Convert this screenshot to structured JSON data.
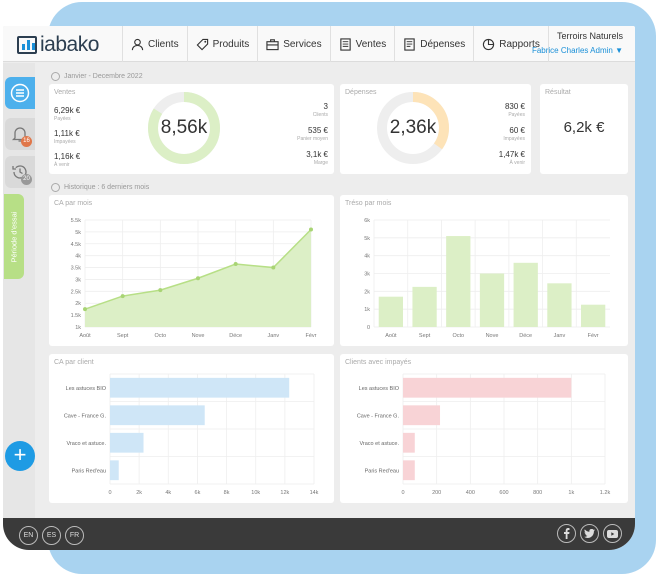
{
  "header": {
    "logo_text": "iabako",
    "nav": [
      {
        "label": "Clients",
        "icon": "user-icon"
      },
      {
        "label": "Produits",
        "icon": "tag-icon"
      },
      {
        "label": "Services",
        "icon": "briefcase-icon"
      },
      {
        "label": "Ventes",
        "icon": "invoice-icon"
      },
      {
        "label": "Dépenses",
        "icon": "receipt-icon"
      },
      {
        "label": "Rapports",
        "icon": "pie-chart-icon"
      }
    ],
    "org_name": "Terroirs Naturels",
    "user_name": "Fabrice Charles Admin ▼"
  },
  "sidebar": {
    "notifications_count": "16",
    "history_count": "20",
    "trial_label": "Période d'essai"
  },
  "period_label": "Janvier - Decembre 2022",
  "history_label": "Historique : 6 derniers mois",
  "ventes": {
    "title": "Ventes",
    "total": "8,56k",
    "donut_fraction": 0.84,
    "left": [
      {
        "value": "6,29k €",
        "label": "Payées"
      },
      {
        "value": "1,11k €",
        "label": "Impayées"
      },
      {
        "value": "1,16k €",
        "label": "À venir"
      }
    ],
    "right": [
      {
        "value": "3",
        "label": "Clients"
      },
      {
        "value": "535 €",
        "label": "Panier moyen"
      },
      {
        "value": "3,1k €",
        "label": "Marge"
      }
    ]
  },
  "depenses": {
    "title": "Dépenses",
    "total": "2,36k",
    "donut_fraction": 0.35,
    "right": [
      {
        "value": "830 €",
        "label": "Payées"
      },
      {
        "value": "60 €",
        "label": "Impayées"
      },
      {
        "value": "1,47k €",
        "label": "À venir"
      }
    ]
  },
  "resultat": {
    "title": "Résultat",
    "value": "6,2k €"
  },
  "chart_data": [
    {
      "type": "area",
      "title": "CA par mois",
      "categories": [
        "Août",
        "Sept",
        "Octo",
        "Nove",
        "Déce",
        "Janv",
        "Févr"
      ],
      "values": [
        1750,
        2300,
        2550,
        3050,
        3650,
        3500,
        5100
      ],
      "ylim": [
        1000,
        5500
      ],
      "yticks": [
        1000,
        1500,
        2000,
        2500,
        3000,
        3500,
        4000,
        4500,
        5000,
        5500
      ],
      "ytick_labels": [
        "1k",
        "1.5k",
        "2k",
        "2.5k",
        "3k",
        "3.5k",
        "4k",
        "4.5k",
        "5k",
        "5.5k"
      ],
      "grid": true
    },
    {
      "type": "bar",
      "title": "Tréso par mois",
      "categories": [
        "Août",
        "Sept",
        "Octo",
        "Nove",
        "Déce",
        "Janv",
        "Févr"
      ],
      "values": [
        1700,
        2250,
        5100,
        3000,
        3600,
        2450,
        1250
      ],
      "ylim": [
        0,
        6000
      ],
      "yticks": [
        0,
        1000,
        2000,
        3000,
        4000,
        5000,
        6000
      ],
      "ytick_labels": [
        "0",
        "1k",
        "2k",
        "3k",
        "4k",
        "5k",
        "6k"
      ],
      "grid": true
    },
    {
      "type": "bar",
      "orientation": "horizontal",
      "title": "CA par client",
      "categories": [
        "Les astuces BIO",
        "Cave - France G.",
        "Vraco et astuce.",
        "Paris Red'eau"
      ],
      "values": [
        12300,
        6500,
        2300,
        600
      ],
      "xlim": [
        0,
        14000
      ],
      "xticks": [
        0,
        2000,
        4000,
        6000,
        8000,
        10000,
        12000,
        14000
      ],
      "xtick_labels": [
        "0",
        "2k",
        "4k",
        "6k",
        "8k",
        "10k",
        "12k",
        "14k"
      ],
      "grid": true
    },
    {
      "type": "bar",
      "orientation": "horizontal",
      "title": "Clients avec impayés",
      "categories": [
        "Les astuces BIO",
        "Cave - France G.",
        "Vraco et astuce.",
        "Paris Red'eau"
      ],
      "values": [
        1000,
        220,
        70,
        70
      ],
      "xlim": [
        0,
        1200
      ],
      "xticks": [
        0,
        200,
        400,
        600,
        800,
        1000,
        1200
      ],
      "xtick_labels": [
        "0",
        "200",
        "400",
        "600",
        "800",
        "1k",
        "1.2k"
      ],
      "grid": true
    }
  ],
  "footer": {
    "languages": [
      "EN",
      "ES",
      "FR"
    ],
    "social": [
      "facebook-icon",
      "twitter-icon",
      "youtube-icon"
    ]
  },
  "colors": {
    "accent": "#1e9be4",
    "green": "#b7df86",
    "green_light": "#dcefc6",
    "orange_light": "#fde3b8",
    "blue_light": "#cfe6f7",
    "pink_light": "#f8d3d6"
  }
}
